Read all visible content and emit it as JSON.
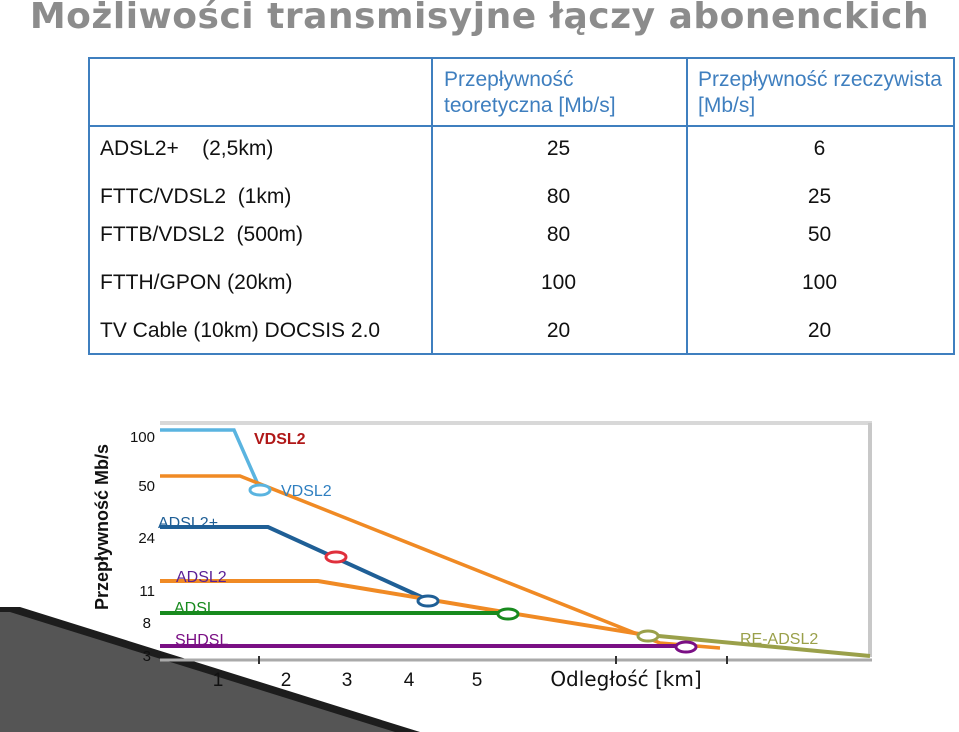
{
  "title": "Możliwości transmisyjne łączy abonenckich",
  "table": {
    "headers": [
      "Przepływność teoretyczna [Mb/s]",
      "Przepływność rzeczywista [Mb/s]"
    ],
    "rows": [
      {
        "label": "ADSL2+    (2,5km)",
        "theoretical": "25",
        "real": "6"
      },
      {
        "label": "FTTC/VDSL2  (1km)",
        "theoretical": "80",
        "real": "25"
      },
      {
        "label": "FTTB/VDSL2  (500m)",
        "theoretical": "80",
        "real": "50"
      },
      {
        "label": "FTTH/GPON (20km)",
        "theoretical": "100",
        "real": "100"
      },
      {
        "label": "TV Cable (10km) DOCSIS 2.0",
        "theoretical": "20",
        "real": "20"
      }
    ]
  },
  "chart": {
    "ylabel": "Przepływność Mb/s",
    "xlabel": "Odległość [km]",
    "y_ticks": [
      "100",
      "50",
      "24",
      "11",
      "8",
      "3"
    ],
    "x_ticks": [
      "1",
      "2",
      "3",
      "4",
      "5"
    ],
    "labels": {
      "vdsl2_red": "VDSL2",
      "vdsl2_blue": "VDSL2",
      "adsl2plus": "ADSL2+",
      "adsl2": "ADSL2",
      "adsl": "ADSL",
      "shdsl": "SHDSL",
      "re_adsl2": "RE-ADSL2"
    },
    "colors": {
      "vdsl2_light": "#5ab4e0",
      "vdsl2_orange": "#f08a24",
      "adsl2plus": "#1f5f96",
      "adsl2": "#f08a24",
      "adsl": "#188a1e",
      "shdsl": "#7a0f84",
      "re_adsl2": "#9aa04a",
      "label_red": "#b01818",
      "label_blue": "#2f7fc0"
    }
  }
}
